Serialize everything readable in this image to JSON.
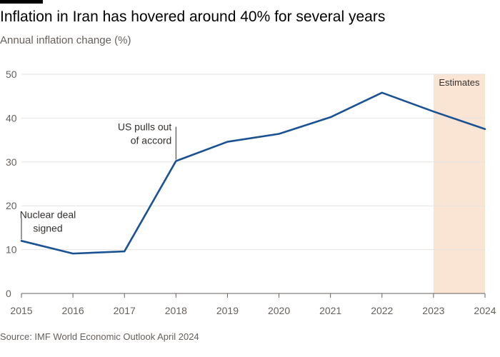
{
  "header": {
    "title": "Inflation in Iran has hovered around 40% for several years",
    "subtitle": "Annual inflation change (%)"
  },
  "footer": {
    "source": "Source: IMF World Economic Outlook April 2024"
  },
  "colors": {
    "line": "#1a5293",
    "estimate_band": "#fae4d4",
    "grid": "#e6e3df",
    "axis": "#66605c"
  },
  "chart_data": {
    "type": "line",
    "title": "Inflation in Iran has hovered around 40% for several years",
    "subtitle": "Annual inflation change (%)",
    "xlabel": "",
    "ylabel": "",
    "x": [
      2015,
      2016,
      2017,
      2018,
      2019,
      2020,
      2021,
      2022,
      2023,
      2024
    ],
    "series": [
      {
        "values": [
          12.0,
          9.1,
          9.6,
          30.2,
          34.6,
          36.4,
          40.2,
          45.8,
          41.5,
          37.5
        ]
      }
    ],
    "xlim": [
      2015,
      2024
    ],
    "ylim": [
      0,
      50
    ],
    "yticks": [
      0,
      10,
      20,
      30,
      40,
      50
    ],
    "grid": true,
    "legend": "none",
    "estimate_band": {
      "from": 2023,
      "to": 2024,
      "label": "Estimates"
    },
    "annotations": [
      {
        "x": 2015,
        "y": 12.0,
        "lines": [
          "Nuclear deal",
          "signed"
        ]
      },
      {
        "x": 2018,
        "y": 30.2,
        "lines": [
          "US pulls out",
          "of accord"
        ]
      }
    ]
  }
}
